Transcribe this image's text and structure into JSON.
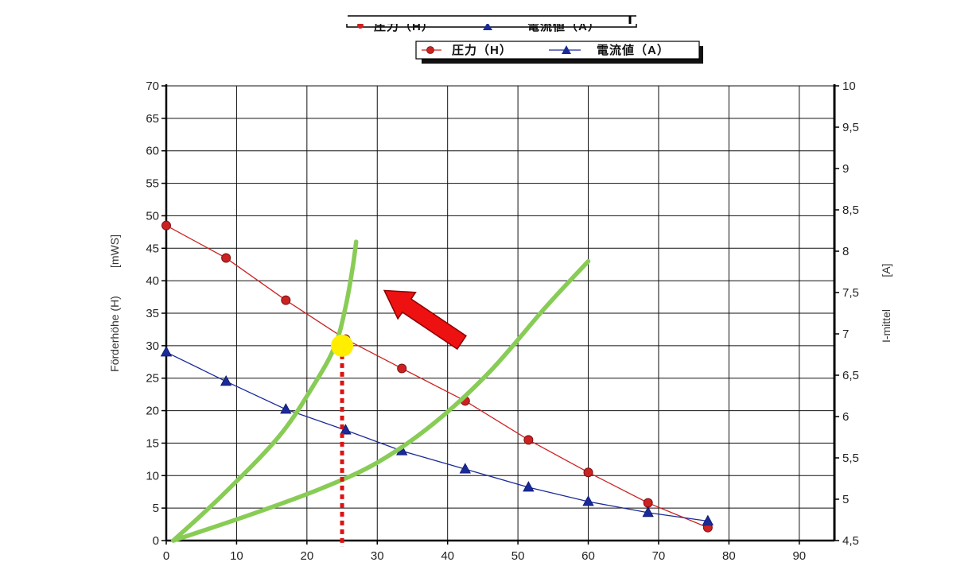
{
  "chart_data": {
    "type": "line",
    "legend": {
      "placement": "top",
      "entries": [
        {
          "label": "圧力（H）",
          "marker": "circle",
          "color": "#cc2222"
        },
        {
          "label": "電流値（A）",
          "marker": "triangle",
          "color": "#1a2a99"
        }
      ]
    },
    "x_ticks": [
      "0",
      "10",
      "20",
      "30",
      "40",
      "50",
      "60",
      "70",
      "80",
      "90"
    ],
    "y_left": {
      "label": "Förderhöhe (H)",
      "unit": "[mWS]",
      "range": [
        0,
        70
      ],
      "ticks": [
        "0",
        "5",
        "10",
        "15",
        "20",
        "25",
        "30",
        "35",
        "40",
        "45",
        "50",
        "55",
        "60",
        "65",
        "70"
      ]
    },
    "y_right": {
      "label": "I-mittel",
      "unit": "[A]",
      "range": [
        4.5,
        10
      ],
      "ticks": [
        "4,5",
        "5",
        "5,5",
        "6",
        "6,5",
        "7",
        "7,5",
        "8",
        "8,5",
        "9",
        "9,5",
        "10"
      ]
    },
    "xlim": [
      0,
      95
    ],
    "grid": true,
    "series": [
      {
        "name": "圧力（H）",
        "axis": "left",
        "color": "#cc2222",
        "marker": "circle",
        "x": [
          0,
          8.5,
          17,
          25.5,
          33.5,
          42.5,
          51.5,
          60,
          68.5,
          77
        ],
        "y": [
          48.5,
          43.5,
          37,
          31,
          26.5,
          21.5,
          15.5,
          10.5,
          5.8,
          2
        ]
      },
      {
        "name": "電流値（A）",
        "axis": "left",
        "color": "#1a2a99",
        "marker": "triangle",
        "x": [
          0,
          8.5,
          17,
          25.5,
          33.5,
          42.5,
          51.5,
          60,
          68.5,
          77
        ],
        "y": [
          29,
          24.5,
          20.2,
          17,
          13.8,
          11,
          8.2,
          6,
          4.3,
          3
        ]
      }
    ],
    "annotations": {
      "system_curves": {
        "color": "#88cc55",
        "curves": [
          {
            "x": [
              1,
              8,
              16,
              21,
              24,
              25.5,
              26.5,
              27
            ],
            "y": [
              0,
              7,
              16,
              24,
              30,
              36,
              42,
              46
            ]
          },
          {
            "x": [
              1,
              12,
              22,
              30,
              38,
              46,
              54,
              60
            ],
            "y": [
              0,
              4,
              8,
              12,
              18,
              26,
              36,
              43
            ]
          }
        ]
      },
      "operating_point": {
        "x": 25,
        "y": 30,
        "color": "#ffee00"
      },
      "vertical_dashed": {
        "x": 25,
        "color": "#dd1111"
      },
      "arrow": {
        "from": [
          42,
          30.5
        ],
        "to": [
          31,
          38.5
        ],
        "color": "#ee1111"
      }
    }
  }
}
